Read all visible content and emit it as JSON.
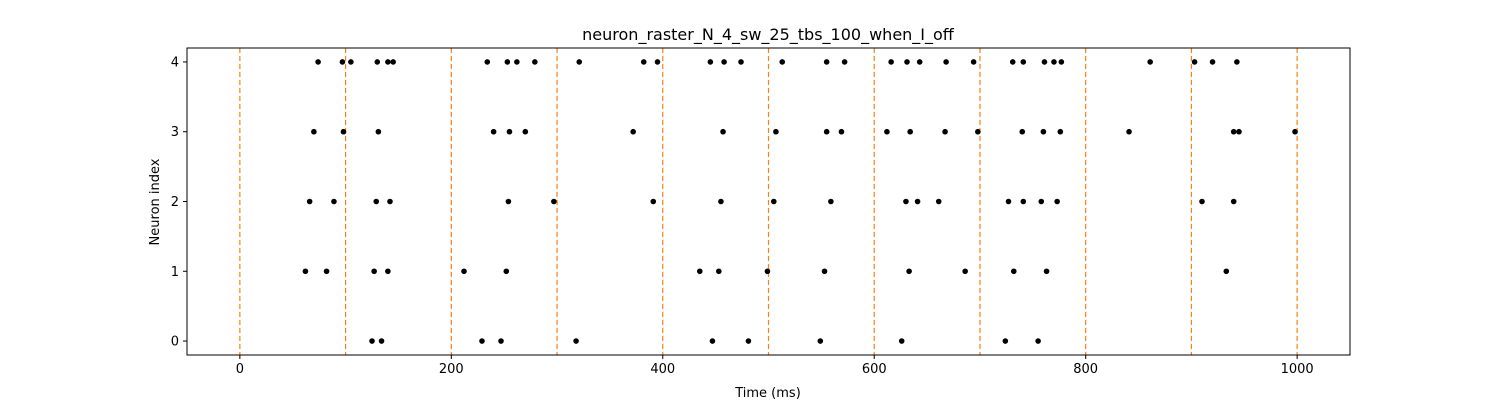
{
  "chart_data": {
    "type": "scatter",
    "title": "neuron_raster_N_4_sw_25_tbs_100_when_I_off",
    "xlabel": "Time (ms)",
    "ylabel": "Neuron index",
    "xlim": [
      -50,
      1050
    ],
    "ylim": [
      -0.2,
      4.2
    ],
    "xticks": [
      0,
      200,
      400,
      600,
      800,
      1000
    ],
    "yticks": [
      0,
      1,
      2,
      3,
      4
    ],
    "xtick_labels": [
      "0",
      "200",
      "400",
      "600",
      "800",
      "1000"
    ],
    "ytick_labels": [
      "0",
      "1",
      "2",
      "3",
      "4"
    ],
    "grid": false,
    "vertical_lines": {
      "x": [
        0,
        100,
        200,
        300,
        400,
        500,
        600,
        700,
        800,
        900,
        1000
      ],
      "color": "#ff7f0e",
      "style": "dashed"
    },
    "marker_color": "#000000",
    "series": [
      {
        "neuron": 0,
        "spike_times": [
          125,
          134,
          229,
          247,
          318,
          447,
          481,
          549,
          626,
          724,
          755
        ]
      },
      {
        "neuron": 1,
        "spike_times": [
          62,
          82,
          127,
          140,
          212,
          252,
          435,
          453,
          499,
          553,
          633,
          686,
          732,
          763,
          933
        ]
      },
      {
        "neuron": 2,
        "spike_times": [
          66,
          89,
          129,
          142,
          254,
          297,
          391,
          455,
          505,
          559,
          630,
          641,
          661,
          727,
          741,
          758,
          773,
          910,
          940
        ]
      },
      {
        "neuron": 3,
        "spike_times": [
          70,
          98,
          131,
          240,
          255,
          270,
          372,
          457,
          507,
          555,
          569,
          612,
          634,
          667,
          698,
          740,
          760,
          776,
          841,
          940,
          945,
          998
        ]
      },
      {
        "neuron": 4,
        "spike_times": [
          74,
          97,
          105,
          130,
          140,
          145,
          234,
          253,
          262,
          279,
          321,
          382,
          395,
          445,
          458,
          474,
          513,
          555,
          572,
          616,
          631,
          643,
          668,
          694,
          731,
          741,
          761,
          770,
          777,
          861,
          903,
          920,
          943
        ]
      }
    ]
  }
}
